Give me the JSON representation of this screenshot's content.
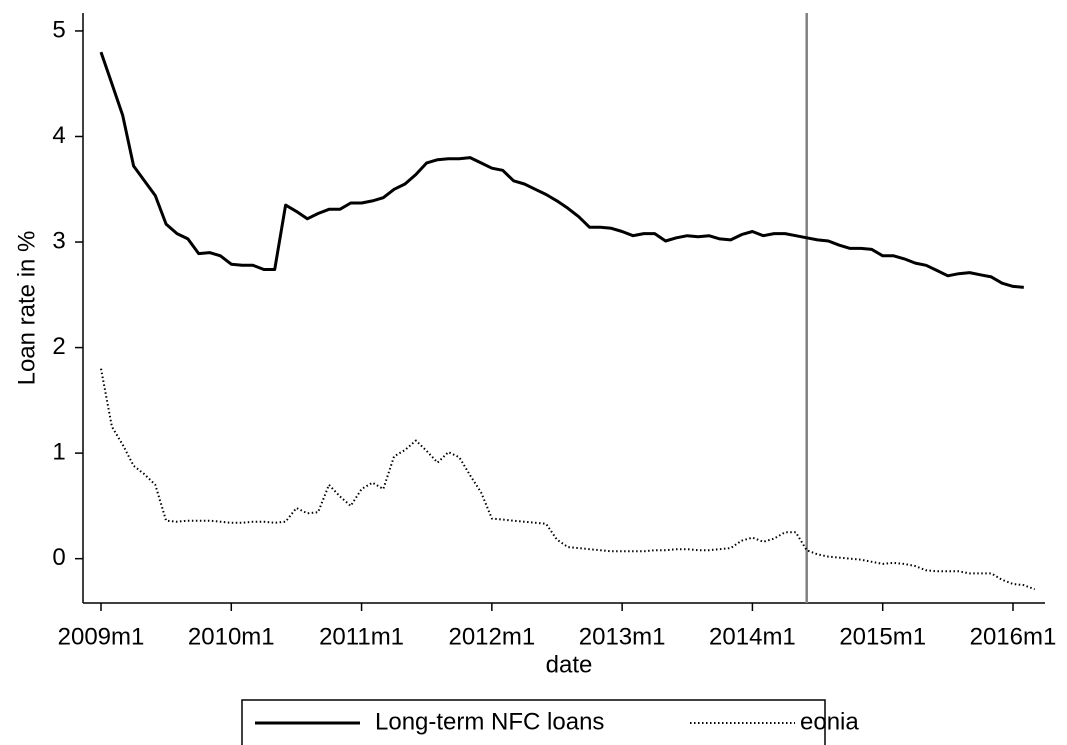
{
  "chart_data": {
    "type": "line",
    "x_label": "date",
    "y_label": "Loan rate in %",
    "x": [
      "2009m1",
      "2009m2",
      "2009m3",
      "2009m4",
      "2009m5",
      "2009m6",
      "2009m7",
      "2009m8",
      "2009m9",
      "2009m10",
      "2009m11",
      "2009m12",
      "2010m1",
      "2010m2",
      "2010m3",
      "2010m4",
      "2010m5",
      "2010m6",
      "2010m7",
      "2010m8",
      "2010m9",
      "2010m10",
      "2010m11",
      "2010m12",
      "2011m1",
      "2011m2",
      "2011m3",
      "2011m4",
      "2011m5",
      "2011m6",
      "2011m7",
      "2011m8",
      "2011m9",
      "2011m10",
      "2011m11",
      "2011m12",
      "2012m1",
      "2012m2",
      "2012m3",
      "2012m4",
      "2012m5",
      "2012m6",
      "2012m7",
      "2012m8",
      "2012m9",
      "2012m10",
      "2012m11",
      "2012m12",
      "2013m1",
      "2013m2",
      "2013m3",
      "2013m4",
      "2013m5",
      "2013m6",
      "2013m7",
      "2013m8",
      "2013m9",
      "2013m10",
      "2013m11",
      "2013m12",
      "2014m1",
      "2014m2",
      "2014m3",
      "2014m4",
      "2014m5",
      "2014m6",
      "2014m7",
      "2014m8",
      "2014m9",
      "2014m10",
      "2014m11",
      "2014m12",
      "2015m1",
      "2015m2",
      "2015m3",
      "2015m4",
      "2015m5",
      "2015m6",
      "2015m7",
      "2015m8",
      "2015m9",
      "2015m10",
      "2015m11",
      "2015m12",
      "2016m1",
      "2016m2",
      "2016m3"
    ],
    "xticks": [
      "2009m1",
      "2010m1",
      "2011m1",
      "2012m1",
      "2013m1",
      "2014m1",
      "2015m1",
      "2016m1"
    ],
    "series": [
      {
        "name": "Long-term NFC loans",
        "color": "#000000",
        "style": "solid",
        "values": [
          4.8,
          4.5,
          4.2,
          3.72,
          3.58,
          3.44,
          3.17,
          3.08,
          3.03,
          2.89,
          2.9,
          2.87,
          2.79,
          2.78,
          2.78,
          2.74,
          2.74,
          3.35,
          3.29,
          3.22,
          3.27,
          3.31,
          3.31,
          3.37,
          3.37,
          3.39,
          3.42,
          3.5,
          3.55,
          3.64,
          3.75,
          3.78,
          3.79,
          3.79,
          3.8,
          3.75,
          3.7,
          3.68,
          3.58,
          3.55,
          3.5,
          3.45,
          3.39,
          3.32,
          3.24,
          3.14,
          3.14,
          3.13,
          3.1,
          3.06,
          3.08,
          3.08,
          3.01,
          3.04,
          3.06,
          3.05,
          3.06,
          3.03,
          3.02,
          3.07,
          3.1,
          3.06,
          3.08,
          3.08,
          3.06,
          3.04,
          3.02,
          3.01,
          2.97,
          2.94,
          2.94,
          2.93,
          2.87,
          2.87,
          2.84,
          2.8,
          2.78,
          2.73,
          2.68,
          2.7,
          2.71,
          2.69,
          2.67,
          2.61,
          2.58,
          2.57,
          null
        ]
      },
      {
        "name": "eonia",
        "color": "#000000",
        "style": "dotted",
        "values": [
          1.8,
          1.25,
          1.08,
          0.88,
          0.8,
          0.7,
          0.36,
          0.35,
          0.36,
          0.36,
          0.36,
          0.35,
          0.34,
          0.34,
          0.35,
          0.35,
          0.34,
          0.35,
          0.48,
          0.43,
          0.44,
          0.7,
          0.59,
          0.5,
          0.66,
          0.72,
          0.66,
          0.97,
          1.03,
          1.12,
          1.02,
          0.91,
          1.01,
          0.96,
          0.79,
          0.63,
          0.38,
          0.37,
          0.36,
          0.35,
          0.34,
          0.33,
          0.18,
          0.11,
          0.1,
          0.09,
          0.08,
          0.07,
          0.07,
          0.07,
          0.07,
          0.08,
          0.08,
          0.09,
          0.09,
          0.08,
          0.08,
          0.09,
          0.1,
          0.17,
          0.2,
          0.16,
          0.19,
          0.25,
          0.25,
          0.08,
          0.04,
          0.02,
          0.01,
          0.0,
          -0.01,
          -0.03,
          -0.05,
          -0.04,
          -0.05,
          -0.07,
          -0.11,
          -0.12,
          -0.12,
          -0.12,
          -0.14,
          -0.14,
          -0.14,
          -0.2,
          -0.24,
          -0.25,
          -0.29
        ]
      }
    ],
    "vline": {
      "x": "2014m6",
      "color": "#808080"
    },
    "ylim": [
      -0.42,
      5.17
    ],
    "yticks": [
      0,
      1,
      2,
      3,
      4,
      5
    ],
    "legend": "bottom"
  }
}
